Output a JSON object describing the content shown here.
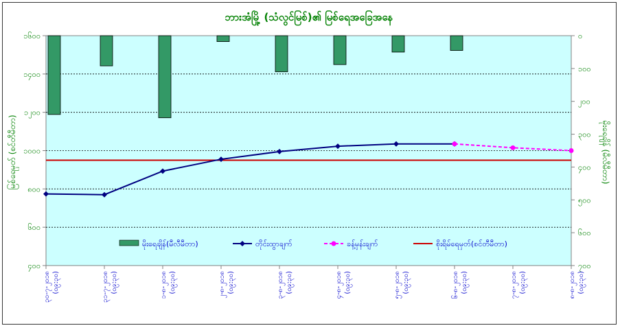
{
  "chart_data": {
    "type": "bar+line",
    "title": "ဘားအံမြို့ (သံလွင်မြစ်)၏ မြစ်ရေအခြေအနေ",
    "ylabel_left": "မြစ်ရေမှတ် (စင်တီမီတာ)",
    "ylabel_right": "မိုးရေချိန် (မီလီမီတာ)",
    "left_axis": {
      "min": 400,
      "max": 1600,
      "step": 200,
      "reverse": false,
      "tick_labels": [
        "၄၀၀",
        "၆၀၀",
        "၈၀၀",
        "၁၀၀၀",
        "၁၂၀၀",
        "၁၄၀၀",
        "၁၆၀၀"
      ]
    },
    "right_axis": {
      "min": 0,
      "max": 700,
      "step": 100,
      "reverse": true,
      "tick_labels": [
        "၀",
        "၁၀၀",
        "၂၀၀",
        "၃၀၀",
        "၄၀၀",
        "၅၀၀",
        "၆၀၀",
        "၇၀၀"
      ]
    },
    "categories": [
      "၃၀-၇-၂၀၁၈ (၀၉:၃၀)",
      "၃၁-၇-၂၀၁၈ (၀၉:၃၀)",
      "၁-၈-၂၀၁၈ (၀၉:၃၀)",
      "၂-၈-၂၀၁၈ (၀၉:၃၀)",
      "၃-၈-၂၀၁၈ (၀၉:၃၀)",
      "၄-၈-၂၀၁၈ (၀၉:၃၀)",
      "၅-၈-၂၀၁၈ (၀၉:၃၀)",
      "၆-၈-၂၀၁၈ (၀၉:၃၀)",
      "၇-၈-၂၀၁၈ (၀၉:၃၀)",
      "၈-၈-၂၀၁၈ (၀၉:၃၀)"
    ],
    "series": [
      {
        "name": "မိုးရေချိန်(မီလီမီတာ)",
        "kind": "bar",
        "axis": "right",
        "color": "#339966",
        "values": [
          240,
          92,
          250,
          18,
          110,
          88,
          50,
          45,
          null,
          null
        ]
      },
      {
        "name": "တိုင်းထွာချက်",
        "kind": "line",
        "axis": "left",
        "color": "#000080",
        "values": [
          774,
          770,
          893,
          955,
          995,
          1023,
          1035,
          1035,
          null,
          null
        ]
      },
      {
        "name": "ခန့်မှန်းချက်",
        "kind": "dashed-line",
        "axis": "left",
        "color": "#ff00ff",
        "values": [
          null,
          null,
          null,
          null,
          null,
          null,
          null,
          1035,
          1015,
          1000
        ]
      },
      {
        "name": "စိုးရိမ်ရေမှတ်(စင်တီမီတာ)",
        "kind": "hline",
        "axis": "left",
        "color": "#cc0000",
        "value": 950
      }
    ],
    "grid": true,
    "plot_background": "#ccffff",
    "legend_position": "bottom-inside"
  }
}
